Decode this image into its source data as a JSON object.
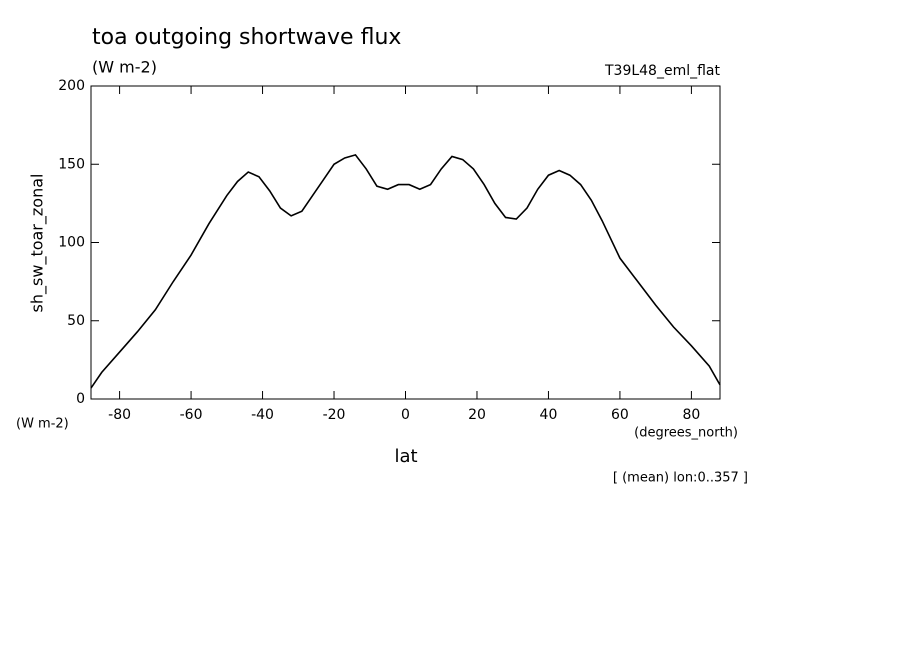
{
  "chart_data": {
    "type": "line",
    "title": "toa outgoing shortwave flux",
    "units": "(W m-2)",
    "dataset": "T39L48_eml_flat",
    "y_label": "sh_sw_toar_zonal",
    "y_units": "(W m-2)",
    "x_units": "(degrees_north)",
    "x_label": "lat",
    "footnote": "[ (mean) lon:0..357 ]",
    "x": [
      -88,
      -85,
      -80,
      -75,
      -70,
      -65,
      -60,
      -55,
      -50,
      -47,
      -44,
      -41,
      -38,
      -35,
      -32,
      -29,
      -26,
      -23,
      -20,
      -17,
      -14,
      -11,
      -8,
      -5,
      -2,
      1,
      4,
      7,
      10,
      13,
      16,
      19,
      22,
      25,
      28,
      31,
      34,
      37,
      40,
      43,
      46,
      49,
      52,
      55,
      60,
      65,
      70,
      75,
      80,
      85,
      88
    ],
    "series": [
      {
        "name": "sh_sw_toar_zonal",
        "color": "#000000",
        "values": [
          7,
          17,
          30,
          43,
          57,
          75,
          92,
          112,
          130,
          139,
          145,
          142,
          133,
          122,
          117,
          120,
          130,
          140,
          150,
          154,
          156,
          147,
          136,
          134,
          137,
          137,
          134,
          137,
          147,
          155,
          153,
          147,
          137,
          125,
          116,
          115,
          122,
          134,
          143,
          146,
          143,
          137,
          127,
          114,
          90,
          75,
          60,
          46,
          34,
          21,
          9
        ]
      }
    ],
    "xlim": [
      -88,
      88
    ],
    "ylim": [
      0,
      200
    ],
    "xticks": [
      -80,
      -60,
      -40,
      -20,
      0,
      20,
      40,
      60,
      80
    ],
    "yticks": [
      0,
      50,
      100,
      150,
      200
    ]
  }
}
